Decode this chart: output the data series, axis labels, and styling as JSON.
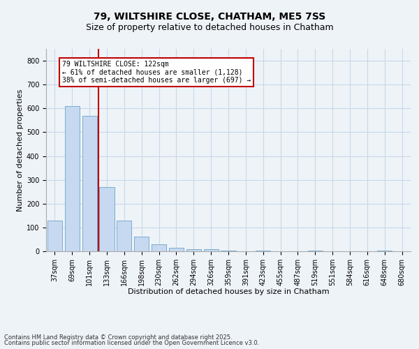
{
  "title_line1": "79, WILTSHIRE CLOSE, CHATHAM, ME5 7SS",
  "title_line2": "Size of property relative to detached houses in Chatham",
  "xlabel": "Distribution of detached houses by size in Chatham",
  "ylabel": "Number of detached properties",
  "categories": [
    "37sqm",
    "69sqm",
    "101sqm",
    "133sqm",
    "166sqm",
    "198sqm",
    "230sqm",
    "262sqm",
    "294sqm",
    "326sqm",
    "359sqm",
    "391sqm",
    "423sqm",
    "455sqm",
    "487sqm",
    "519sqm",
    "551sqm",
    "584sqm",
    "616sqm",
    "648sqm",
    "680sqm"
  ],
  "values": [
    130,
    610,
    570,
    270,
    130,
    62,
    30,
    15,
    10,
    10,
    4,
    0,
    4,
    0,
    0,
    4,
    0,
    0,
    0,
    4,
    0
  ],
  "bar_color": "#c6d9f0",
  "bar_edge_color": "#7aadcf",
  "grid_color": "#c8d8e8",
  "vline_x": 2.5,
  "vline_color": "#c00000",
  "annotation_text": "79 WILTSHIRE CLOSE: 122sqm\n← 61% of detached houses are smaller (1,128)\n38% of semi-detached houses are larger (697) →",
  "annotation_box_color": "#ffffff",
  "annotation_box_edge": "#c00000",
  "ylim": [
    0,
    850
  ],
  "yticks": [
    0,
    100,
    200,
    300,
    400,
    500,
    600,
    700,
    800
  ],
  "footer_line1": "Contains HM Land Registry data © Crown copyright and database right 2025.",
  "footer_line2": "Contains public sector information licensed under the Open Government Licence v3.0.",
  "bg_color": "#eef3f8",
  "title_fontsize": 10,
  "subtitle_fontsize": 9,
  "tick_fontsize": 7,
  "axis_label_fontsize": 8,
  "annotation_fontsize": 7,
  "footer_fontsize": 6
}
